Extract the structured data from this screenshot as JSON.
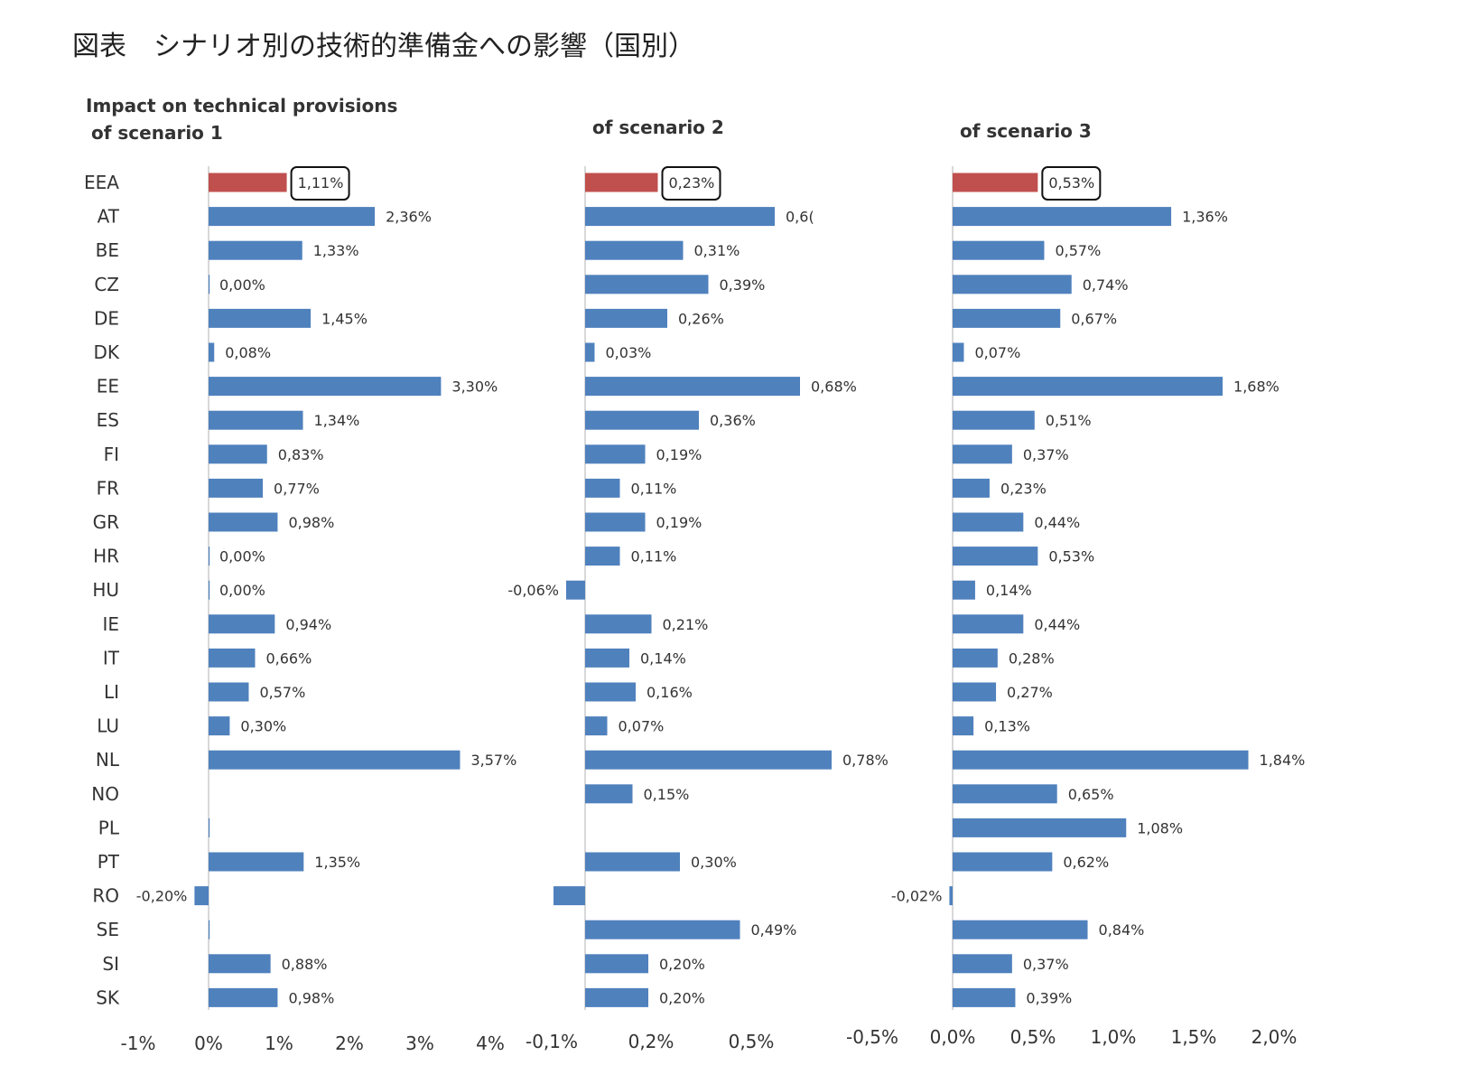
{
  "page_title": "図表　シナリオ別の技術的準備金への影響（国別）",
  "colors": {
    "highlight": "#c0504d",
    "bar": "#4f81bd",
    "axis": "#bfbfbf",
    "text": "#333333"
  },
  "chart_data": [
    {
      "type": "bar",
      "orientation": "horizontal",
      "title_lines": [
        "Impact on technical provisions",
        "of scenario 1"
      ],
      "categories": [
        "EEA",
        "AT",
        "BE",
        "CZ",
        "DE",
        "DK",
        "EE",
        "ES",
        "FI",
        "FR",
        "GR",
        "HR",
        "HU",
        "IE",
        "IT",
        "LI",
        "LU",
        "NL",
        "NO",
        "PL",
        "PT",
        "RO",
        "SE",
        "SI",
        "SK"
      ],
      "values": [
        1.11,
        2.36,
        1.33,
        0.0,
        1.45,
        0.08,
        3.3,
        1.34,
        0.83,
        0.77,
        0.98,
        0.0,
        0.0,
        0.94,
        0.66,
        0.57,
        0.3,
        3.57,
        null,
        0.0,
        1.35,
        -0.2,
        0.0,
        0.88,
        0.98
      ],
      "value_labels": [
        "1,11%",
        "2,36%",
        "1,33%",
        "0,00%",
        "1,45%",
        "0,08%",
        "3,30%",
        "1,34%",
        "0,83%",
        "0,77%",
        "0,98%",
        "0,00%",
        "0,00%",
        "0,94%",
        "0,66%",
        "0,57%",
        "0,30%",
        "3,57%",
        "",
        "",
        "1,35%",
        "-0,20%",
        "",
        "0,88%",
        "0,98%"
      ],
      "highlight_category": "EEA",
      "xlim": [
        -1,
        4
      ],
      "xtick_values": [
        -1,
        0,
        1,
        2,
        3,
        4
      ],
      "xtick_labels": [
        "-1%",
        "0%",
        "1%",
        "2%",
        "3%",
        "4%"
      ],
      "unit": "%"
    },
    {
      "type": "bar",
      "orientation": "horizontal",
      "title_lines": [
        "of scenario 2"
      ],
      "categories": [
        "EEA",
        "AT",
        "BE",
        "CZ",
        "DE",
        "DK",
        "EE",
        "ES",
        "FI",
        "FR",
        "GR",
        "HR",
        "HU",
        "IE",
        "IT",
        "LI",
        "LU",
        "NL",
        "NO",
        "PL",
        "PT",
        "RO",
        "SE",
        "SI",
        "SK"
      ],
      "values": [
        0.23,
        0.6,
        0.31,
        0.39,
        0.26,
        0.03,
        0.68,
        0.36,
        0.19,
        0.11,
        0.19,
        0.11,
        -0.06,
        0.21,
        0.14,
        0.16,
        0.07,
        0.78,
        0.15,
        null,
        0.3,
        -0.1,
        0.49,
        0.2,
        0.2
      ],
      "value_labels": [
        "0,23%",
        "0,6(",
        "0,31%",
        "0,39%",
        "0,26%",
        "0,03%",
        "0,68%",
        "0,36%",
        "0,19%",
        "0,11%",
        "0,19%",
        "0,11%",
        "-0,06%",
        "0,21%",
        "0,14%",
        "0,16%",
        "0,07%",
        "0,78%",
        "0,15%",
        "",
        "0,30%",
        "",
        "0,49%",
        "0,20%",
        "0,20%"
      ],
      "highlight_category": "EEA",
      "xtick_values": [
        -0.1,
        0.2,
        0.5
      ],
      "xtick_labels": [
        "-0,1%",
        "0,2%",
        "0,5%"
      ],
      "unit": "%"
    },
    {
      "type": "bar",
      "orientation": "horizontal",
      "title_lines": [
        "of scenario 3"
      ],
      "categories": [
        "EEA",
        "AT",
        "BE",
        "CZ",
        "DE",
        "DK",
        "EE",
        "ES",
        "FI",
        "FR",
        "GR",
        "HR",
        "HU",
        "IE",
        "IT",
        "LI",
        "LU",
        "NL",
        "NO",
        "PL",
        "PT",
        "RO",
        "SE",
        "SI",
        "SK"
      ],
      "values": [
        0.53,
        1.36,
        0.57,
        0.74,
        0.67,
        0.07,
        1.68,
        0.51,
        0.37,
        0.23,
        0.44,
        0.53,
        0.14,
        0.44,
        0.28,
        0.27,
        0.13,
        1.84,
        0.65,
        1.08,
        0.62,
        -0.02,
        0.84,
        0.37,
        0.39
      ],
      "value_labels": [
        "0,53%",
        "1,36%",
        "0,57%",
        "0,74%",
        "0,67%",
        "0,07%",
        "1,68%",
        "0,51%",
        "0,37%",
        "0,23%",
        "0,44%",
        "0,53%",
        "0,14%",
        "0,44%",
        "0,28%",
        "0,27%",
        "0,13%",
        "1,84%",
        "0,65%",
        "1,08%",
        "0,62%",
        "-0,02%",
        "0,84%",
        "0,37%",
        "0,39%"
      ],
      "highlight_category": "EEA",
      "xlim": [
        -0.5,
        2.0
      ],
      "xtick_values": [
        -0.5,
        0.0,
        0.5,
        1.0,
        1.5,
        2.0
      ],
      "xtick_labels": [
        "-0,5%",
        "0,0%",
        "0,5%",
        "1,0%",
        "1,5%",
        "2,0%"
      ],
      "unit": "%"
    }
  ]
}
